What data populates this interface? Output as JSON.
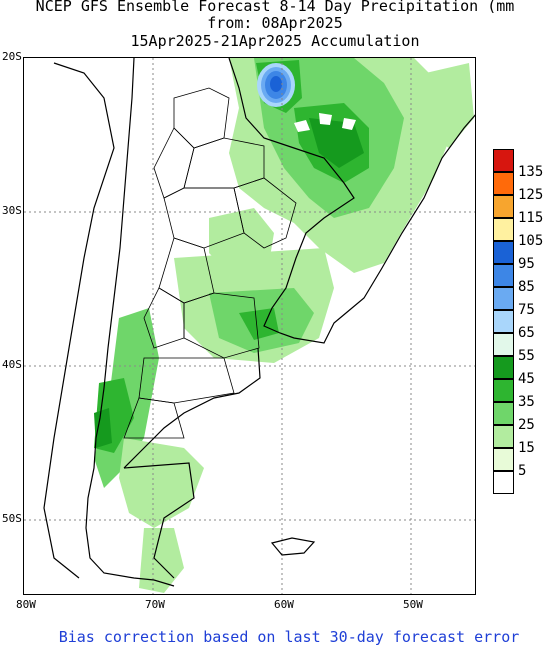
{
  "title": {
    "line1": "NCEP GFS Ensemble Forecast 8-14 Day Precipitation (mm",
    "line2": "from: 08Apr2025",
    "line3": "15Apr2025-21Apr2025 Accumulation"
  },
  "map": {
    "lat_labels": [
      "20S",
      "30S",
      "40S",
      "50S"
    ],
    "lon_labels": [
      "80W",
      "70W",
      "60W",
      "50W"
    ],
    "grid": true
  },
  "legend": {
    "items": [
      {
        "label": "135",
        "color": "#d7160f"
      },
      {
        "label": "125",
        "color": "#ff6a0a"
      },
      {
        "label": "115",
        "color": "#f7a52e"
      },
      {
        "label": "105",
        "color": "#fff1a0"
      },
      {
        "label": "95",
        "color": "#1a62d6"
      },
      {
        "label": "85",
        "color": "#3d86e6"
      },
      {
        "label": "75",
        "color": "#6aaaf2"
      },
      {
        "label": "65",
        "color": "#a9d6fb"
      },
      {
        "label": "55",
        "color": "#e2f8ea"
      },
      {
        "label": "45",
        "color": "#159a1e"
      },
      {
        "label": "35",
        "color": "#2eb530"
      },
      {
        "label": "25",
        "color": "#6fd66a"
      },
      {
        "label": "15",
        "color": "#b2ec9f"
      },
      {
        "label": "5",
        "color": "#e8fbd8"
      },
      {
        "label": "",
        "color": "#ffffff"
      }
    ]
  },
  "footer": "Bias correction based on last 30-day forecast error"
}
